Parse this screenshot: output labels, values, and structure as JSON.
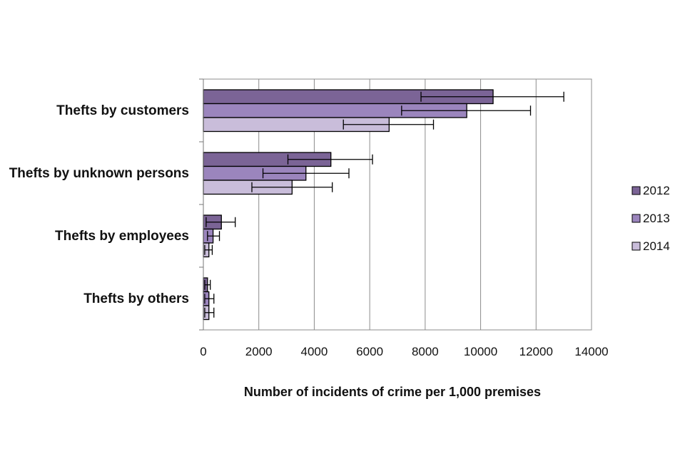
{
  "chart_data": {
    "type": "bar",
    "orientation": "horizontal",
    "categories": [
      "Thefts by customers",
      "Thefts by unknown persons",
      "Thefts by employees",
      "Thefts by others"
    ],
    "series": [
      {
        "name": "2012",
        "color": "#7B6496",
        "values": [
          10450,
          4600,
          650,
          150
        ],
        "error_low": [
          7850,
          3050,
          100,
          50
        ],
        "error_high": [
          13000,
          6100,
          1150,
          250
        ]
      },
      {
        "name": "2013",
        "color": "#9B85BD",
        "values": [
          9500,
          3700,
          350,
          200
        ],
        "error_low": [
          7150,
          2150,
          150,
          50
        ],
        "error_high": [
          11800,
          5250,
          580,
          380
        ]
      },
      {
        "name": "2014",
        "color": "#C9BDDA",
        "values": [
          6700,
          3200,
          200,
          200
        ],
        "error_low": [
          5050,
          1750,
          50,
          50
        ],
        "error_high": [
          8300,
          4650,
          320,
          380
        ]
      }
    ],
    "xlabel": "Number of incidents of crime per 1,000 premises",
    "ylabel": "",
    "xlim": [
      0,
      14000
    ],
    "xticks": [
      0,
      2000,
      4000,
      6000,
      8000,
      10000,
      12000,
      14000
    ],
    "xtick_labels": [
      "0",
      "2000",
      "4000",
      "6000",
      "8000",
      "10000",
      "12000",
      "14000"
    ],
    "grid": "vertical",
    "legend_position": "right"
  }
}
